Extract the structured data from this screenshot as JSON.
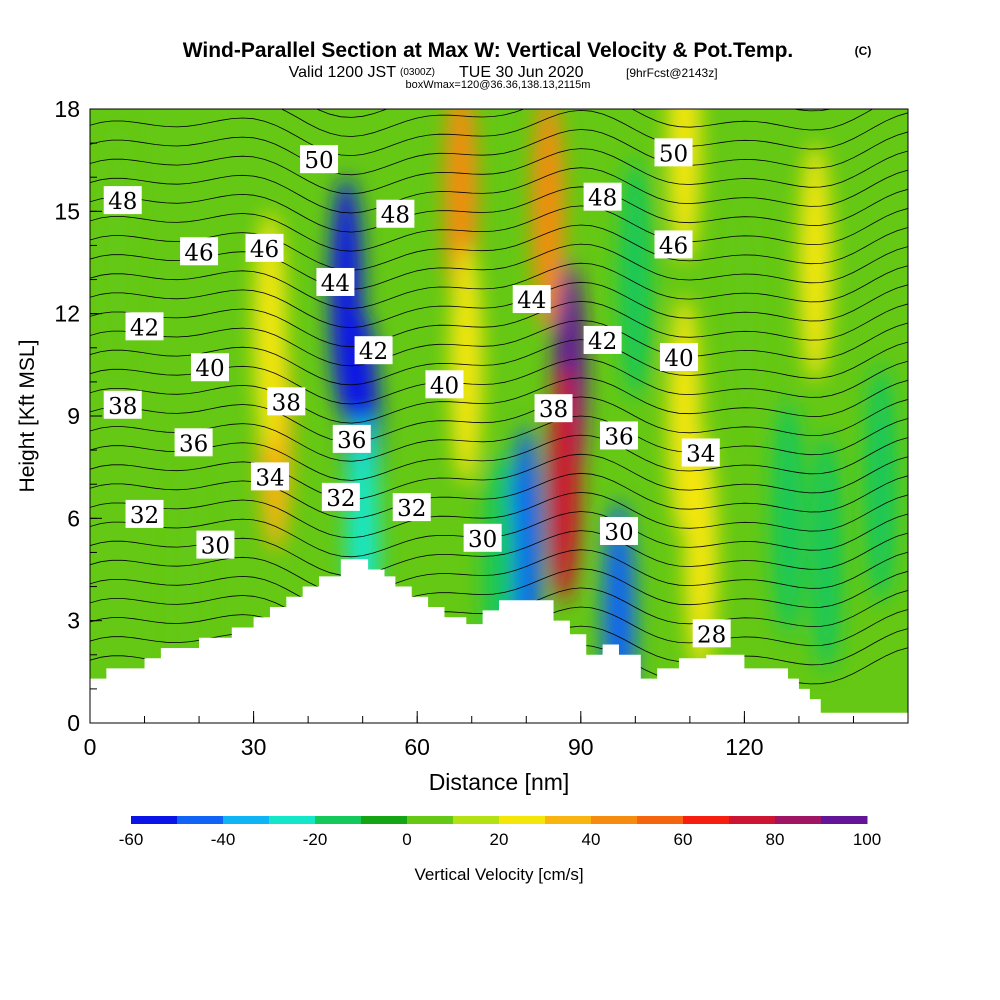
{
  "chart_data": {
    "type": "heatmap",
    "title": "Wind-Parallel Section at Max W: Vertical Velocity & Pot.Temp.",
    "title_mark": "(C)",
    "subtitle_valid": "Valid 1200 JST",
    "subtitle_utc": "(0300Z)",
    "subtitle_date": "TUE 30 Jun 2020",
    "subtitle_fcst": "[9hrFcst@2143z]",
    "subtitle2": "boxWmax=120@36.36,138.13,2115m",
    "xlabel": "Distance [nm]",
    "ylabel": "Height [Kft MSL]",
    "xlim": [
      0,
      150
    ],
    "ylim": [
      0,
      18
    ],
    "x_ticks": [
      "0",
      "30",
      "60",
      "90",
      "120"
    ],
    "x_tick_values": [
      0,
      30,
      60,
      90,
      120
    ],
    "y_ticks": [
      "0",
      "3",
      "6",
      "9",
      "12",
      "15",
      "18"
    ],
    "y_tick_values": [
      0,
      3,
      6,
      9,
      12,
      15,
      18
    ],
    "colorbar": {
      "label": "Vertical Velocity [cm/s]",
      "min": -60,
      "max": 100,
      "step": 10,
      "tick_labels": [
        "-60",
        "-40",
        "-20",
        "0",
        "20",
        "40",
        "60",
        "80",
        "100"
      ],
      "tick_values": [
        -60,
        -40,
        -20,
        0,
        20,
        40,
        60,
        80,
        100
      ],
      "colors": [
        "#0a14e6",
        "#0f64f5",
        "#0fb4f5",
        "#14e6c8",
        "#14c85a",
        "#14a514",
        "#64c814",
        "#b4e114",
        "#f5e60a",
        "#fab40f",
        "#f58c0f",
        "#f5640f",
        "#f51e0f",
        "#cd1432",
        "#a01464",
        "#641496"
      ]
    },
    "velocity_cells": [
      {
        "x": 47,
        "y": 12.5,
        "value": -55
      },
      {
        "x": 50,
        "y": 8.5,
        "value": -60
      },
      {
        "x": 50,
        "y": 5.5,
        "value": -30
      },
      {
        "x": 80,
        "y": 5.2,
        "value": -45
      },
      {
        "x": 75,
        "y": 4.5,
        "value": -20
      },
      {
        "x": 97,
        "y": 3.0,
        "value": -50
      },
      {
        "x": 100,
        "y": 13.0,
        "value": -20
      },
      {
        "x": 120,
        "y": 12.0,
        "value": 5
      },
      {
        "x": 88,
        "y": 10.0,
        "value": 90
      },
      {
        "x": 87,
        "y": 7.0,
        "value": 70
      },
      {
        "x": 84,
        "y": 15.0,
        "value": 45
      },
      {
        "x": 68,
        "y": 15.5,
        "value": 40
      },
      {
        "x": 69,
        "y": 10.5,
        "value": 20
      },
      {
        "x": 34,
        "y": 8.5,
        "value": 30
      },
      {
        "x": 33,
        "y": 11.5,
        "value": 20
      },
      {
        "x": 109,
        "y": 17.0,
        "value": 25
      },
      {
        "x": 109,
        "y": 9.0,
        "value": 25
      },
      {
        "x": 133,
        "y": 13.5,
        "value": 25
      },
      {
        "x": 135,
        "y": 5.0,
        "value": -15
      },
      {
        "x": 128,
        "y": 6.0,
        "value": -12
      },
      {
        "x": 112,
        "y": 5.0,
        "value": 20
      },
      {
        "x": 145,
        "y": 7.0,
        "value": -12
      },
      {
        "x": 5,
        "y": 14.0,
        "value": 0
      },
      {
        "x": 18,
        "y": 4.0,
        "value": 8
      }
    ],
    "theta_contours": {
      "min": 28,
      "max": 60,
      "labels": [
        {
          "value": "50",
          "x": 42,
          "y": 16.5
        },
        {
          "value": "48",
          "x": 6,
          "y": 15.3
        },
        {
          "value": "48",
          "x": 56,
          "y": 14.9
        },
        {
          "value": "46",
          "x": 20,
          "y": 13.8
        },
        {
          "value": "46",
          "x": 32,
          "y": 13.9
        },
        {
          "value": "44",
          "x": 45,
          "y": 12.9
        },
        {
          "value": "42",
          "x": 10,
          "y": 11.6
        },
        {
          "value": "42",
          "x": 52,
          "y": 10.9
        },
        {
          "value": "40",
          "x": 22,
          "y": 10.4
        },
        {
          "value": "40",
          "x": 65,
          "y": 9.9
        },
        {
          "value": "38",
          "x": 6,
          "y": 9.3
        },
        {
          "value": "38",
          "x": 36,
          "y": 9.4
        },
        {
          "value": "36",
          "x": 19,
          "y": 8.2
        },
        {
          "value": "36",
          "x": 48,
          "y": 8.3
        },
        {
          "value": "34",
          "x": 33,
          "y": 7.2
        },
        {
          "value": "32",
          "x": 10,
          "y": 6.1
        },
        {
          "value": "32",
          "x": 46,
          "y": 6.6
        },
        {
          "value": "32",
          "x": 59,
          "y": 6.3
        },
        {
          "value": "30",
          "x": 23,
          "y": 5.2
        },
        {
          "value": "30",
          "x": 72,
          "y": 5.4
        },
        {
          "value": "50",
          "x": 107,
          "y": 16.7
        },
        {
          "value": "48",
          "x": 94,
          "y": 15.4
        },
        {
          "value": "46",
          "x": 107,
          "y": 14.0
        },
        {
          "value": "44",
          "x": 81,
          "y": 12.4
        },
        {
          "value": "42",
          "x": 94,
          "y": 11.2
        },
        {
          "value": "40",
          "x": 108,
          "y": 10.7
        },
        {
          "value": "38",
          "x": 85,
          "y": 9.2
        },
        {
          "value": "36",
          "x": 97,
          "y": 8.4
        },
        {
          "value": "34",
          "x": 112,
          "y": 7.9
        },
        {
          "value": "30",
          "x": 97,
          "y": 5.6
        },
        {
          "value": "28",
          "x": 114,
          "y": 2.6
        }
      ]
    },
    "terrain": {
      "x": [
        0,
        3,
        3,
        5,
        5,
        10,
        10,
        13,
        13,
        20,
        20,
        26,
        26,
        30,
        30,
        33,
        33,
        36,
        36,
        39,
        39,
        42,
        42,
        46,
        46,
        51,
        51,
        54,
        54,
        56,
        56,
        59,
        59,
        62,
        62,
        65,
        65,
        69,
        69,
        72,
        72,
        75,
        75,
        85,
        85,
        88,
        88,
        91,
        91,
        94,
        94,
        97,
        97,
        101,
        101,
        104,
        104,
        108,
        108,
        113,
        113,
        120,
        120,
        128,
        128,
        130,
        130,
        132,
        132,
        134,
        134,
        143,
        143,
        150
      ],
      "y": [
        1.3,
        1.3,
        1.6,
        1.6,
        1.6,
        1.6,
        1.9,
        1.9,
        2.2,
        2.2,
        2.5,
        2.5,
        2.8,
        2.8,
        3.1,
        3.1,
        3.4,
        3.4,
        3.7,
        3.7,
        4.0,
        4.0,
        4.3,
        4.3,
        4.8,
        4.8,
        4.5,
        4.5,
        4.3,
        4.3,
        4.0,
        4.0,
        3.7,
        3.7,
        3.4,
        3.4,
        3.1,
        3.1,
        2.9,
        2.9,
        3.3,
        3.3,
        3.6,
        3.6,
        3.0,
        3.0,
        2.6,
        2.6,
        2.0,
        2.0,
        2.3,
        2.3,
        2.0,
        2.0,
        1.3,
        1.3,
        1.6,
        1.6,
        1.9,
        1.9,
        2.0,
        2.0,
        1.6,
        1.6,
        1.3,
        1.3,
        1.0,
        1.0,
        0.7,
        0.7,
        0.3,
        0.3,
        0.3,
        0.3
      ]
    }
  }
}
